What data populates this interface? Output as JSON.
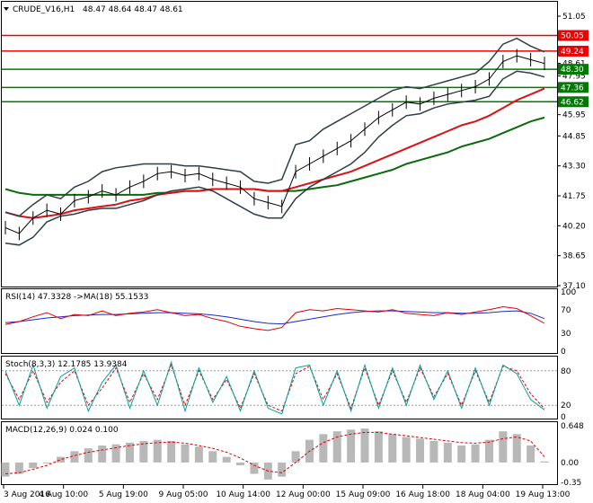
{
  "header": {
    "symbol_label": "CRUDE_V16,H1",
    "ohlc_label": "48.47 48.64 48.47 48.61"
  },
  "panels": {
    "rsi_label": "RSI(14) 47.3328   ->MA(18) 55.1533",
    "stoch_label": "Stoch(8,3,3) 12.1785 13.9384",
    "macd_label": "MACD(12,26,9) 0.024 0.100"
  },
  "colors": {
    "price_bars": "#000000",
    "bollinger": "#2f3f46",
    "ma_fast": "#00aa00",
    "ma_mid": "#1a3a2a",
    "ma_red": "#dd1111",
    "ma_green": "#0b6b0b",
    "level_red": "#ee0000",
    "level_green": "#007a00",
    "rsi_line": "#e00000",
    "rsi_ma": "#1a2ac0",
    "stoch_main": "#00a0a0",
    "stoch_signal": "#e00000",
    "macd_hist": "#b8b8b8",
    "macd_signal": "#e00000"
  },
  "chart_data": {
    "type": "line",
    "price_axis": {
      "ticks": [
        "51.05",
        "49.90",
        "48.61",
        "47.95",
        "46.63",
        "45.95",
        "44.85",
        "43.30",
        "41.75",
        "40.20",
        "38.65",
        "37.10"
      ],
      "ylim": [
        37.1,
        51.05
      ]
    },
    "x_ticks": [
      "3 Aug 2016",
      "4 Aug 10:00",
      "5 Aug 19:00",
      "9 Aug 05:00",
      "10 Aug 14:00",
      "12 Aug 00:00",
      "15 Aug 09:00",
      "16 Aug 18:00",
      "18 Aug 04:00",
      "19 Aug 13:00"
    ],
    "levels": [
      {
        "value": 50.05,
        "label": "50.05",
        "color": "red"
      },
      {
        "value": 49.24,
        "label": "49.24",
        "color": "red"
      },
      {
        "value": 48.3,
        "label": "48.30",
        "color": "green"
      },
      {
        "value": 47.36,
        "label": "47.36",
        "color": "green"
      },
      {
        "value": 46.62,
        "label": "46.62",
        "color": "green"
      }
    ],
    "price": [
      40.1,
      39.8,
      40.6,
      41.0,
      40.8,
      41.5,
      41.7,
      42.0,
      41.8,
      42.2,
      42.5,
      42.9,
      43.0,
      42.8,
      42.9,
      42.6,
      42.4,
      42.2,
      41.6,
      41.4,
      41.2,
      43.0,
      43.4,
      43.8,
      44.2,
      44.6,
      45.2,
      45.8,
      46.2,
      46.6,
      46.5,
      46.8,
      47.0,
      47.2,
      47.4,
      47.8,
      48.7,
      49.0,
      48.8,
      48.6
    ],
    "bollinger_upper": [
      40.9,
      40.7,
      41.3,
      41.8,
      41.6,
      42.2,
      42.5,
      43.0,
      43.2,
      43.3,
      43.4,
      43.4,
      43.4,
      43.3,
      43.3,
      43.2,
      43.1,
      43.0,
      42.5,
      42.4,
      42.6,
      44.4,
      44.6,
      45.2,
      45.6,
      46.0,
      46.4,
      46.8,
      47.2,
      47.4,
      47.3,
      47.5,
      47.7,
      47.9,
      48.1,
      48.7,
      49.6,
      49.9,
      49.5,
      49.2
    ],
    "bollinger_lower": [
      39.3,
      39.2,
      39.6,
      40.4,
      40.7,
      40.8,
      41.0,
      41.1,
      41.1,
      41.3,
      41.5,
      41.8,
      42.0,
      42.1,
      42.2,
      42.0,
      41.6,
      41.2,
      40.8,
      40.6,
      40.6,
      41.6,
      42.2,
      42.6,
      43.0,
      43.4,
      44.0,
      44.8,
      45.4,
      45.9,
      46.0,
      46.3,
      46.5,
      46.6,
      46.7,
      46.9,
      47.8,
      48.2,
      48.1,
      47.9
    ],
    "ma_red": [
      40.9,
      40.7,
      40.6,
      40.7,
      40.8,
      41.0,
      41.1,
      41.2,
      41.3,
      41.5,
      41.6,
      41.8,
      41.9,
      42.0,
      42.0,
      42.1,
      42.1,
      42.1,
      42.1,
      42.0,
      42.0,
      42.2,
      42.4,
      42.6,
      42.8,
      43.0,
      43.3,
      43.6,
      43.9,
      44.2,
      44.5,
      44.8,
      45.1,
      45.4,
      45.6,
      45.9,
      46.3,
      46.7,
      47.0,
      47.3
    ],
    "ma_green": [
      42.1,
      41.9,
      41.8,
      41.8,
      41.8,
      41.8,
      41.8,
      41.8,
      41.8,
      41.8,
      41.8,
      41.9,
      41.9,
      42.0,
      42.0,
      42.1,
      42.1,
      42.1,
      42.1,
      42.0,
      42.0,
      42.0,
      42.1,
      42.2,
      42.3,
      42.5,
      42.7,
      42.9,
      43.1,
      43.4,
      43.6,
      43.8,
      44.0,
      44.3,
      44.5,
      44.7,
      45.0,
      45.3,
      45.6,
      45.8
    ],
    "rsi": {
      "axis_ticks": [
        "100",
        "70",
        "30",
        "0"
      ],
      "ylim": [
        0,
        100
      ],
      "values": [
        45,
        50,
        58,
        65,
        55,
        62,
        60,
        68,
        60,
        64,
        66,
        70,
        65,
        60,
        62,
        55,
        50,
        42,
        38,
        35,
        40,
        65,
        70,
        68,
        72,
        70,
        68,
        66,
        70,
        64,
        62,
        60,
        65,
        62,
        66,
        70,
        75,
        72,
        60,
        47
      ],
      "ma_values": [
        48,
        50,
        53,
        56,
        58,
        60,
        61,
        62,
        62,
        63,
        64,
        65,
        65,
        64,
        63,
        61,
        58,
        54,
        50,
        47,
        46,
        50,
        54,
        58,
        62,
        65,
        67,
        68,
        68,
        67,
        66,
        65,
        65,
        64,
        64,
        65,
        67,
        68,
        64,
        55
      ]
    },
    "stochastic": {
      "axis_ticks": [
        "80",
        "20",
        "0"
      ],
      "ylim": [
        0,
        100
      ],
      "main": [
        80,
        20,
        90,
        15,
        70,
        85,
        10,
        60,
        90,
        15,
        80,
        20,
        95,
        10,
        85,
        25,
        70,
        10,
        80,
        15,
        5,
        85,
        90,
        20,
        80,
        10,
        90,
        15,
        85,
        20,
        90,
        30,
        80,
        15,
        85,
        20,
        90,
        75,
        30,
        12
      ],
      "signal": [
        75,
        30,
        80,
        25,
        60,
        80,
        20,
        50,
        85,
        25,
        75,
        30,
        90,
        20,
        80,
        30,
        65,
        15,
        75,
        20,
        10,
        75,
        88,
        30,
        75,
        15,
        85,
        20,
        80,
        25,
        85,
        35,
        75,
        20,
        80,
        25,
        88,
        80,
        40,
        14
      ]
    },
    "macd": {
      "axis_ticks": [
        "0.648",
        "0.00",
        "-0.35"
      ],
      "ylim": [
        -0.35,
        0.648
      ],
      "hist": [
        -0.25,
        -0.2,
        -0.1,
        0.0,
        0.1,
        0.2,
        0.25,
        0.3,
        0.32,
        0.35,
        0.38,
        0.4,
        0.38,
        0.32,
        0.28,
        0.2,
        0.1,
        -0.05,
        -0.2,
        -0.3,
        -0.25,
        0.2,
        0.4,
        0.5,
        0.55,
        0.58,
        0.6,
        0.55,
        0.5,
        0.45,
        0.42,
        0.38,
        0.35,
        0.3,
        0.32,
        0.4,
        0.55,
        0.5,
        0.3,
        0.02
      ],
      "signal": [
        -0.2,
        -0.18,
        -0.12,
        -0.05,
        0.05,
        0.12,
        0.18,
        0.22,
        0.26,
        0.3,
        0.33,
        0.35,
        0.36,
        0.34,
        0.3,
        0.25,
        0.18,
        0.08,
        -0.05,
        -0.15,
        -0.18,
        0.0,
        0.2,
        0.35,
        0.45,
        0.5,
        0.53,
        0.53,
        0.5,
        0.47,
        0.44,
        0.41,
        0.38,
        0.35,
        0.34,
        0.36,
        0.42,
        0.45,
        0.38,
        0.1
      ]
    }
  }
}
